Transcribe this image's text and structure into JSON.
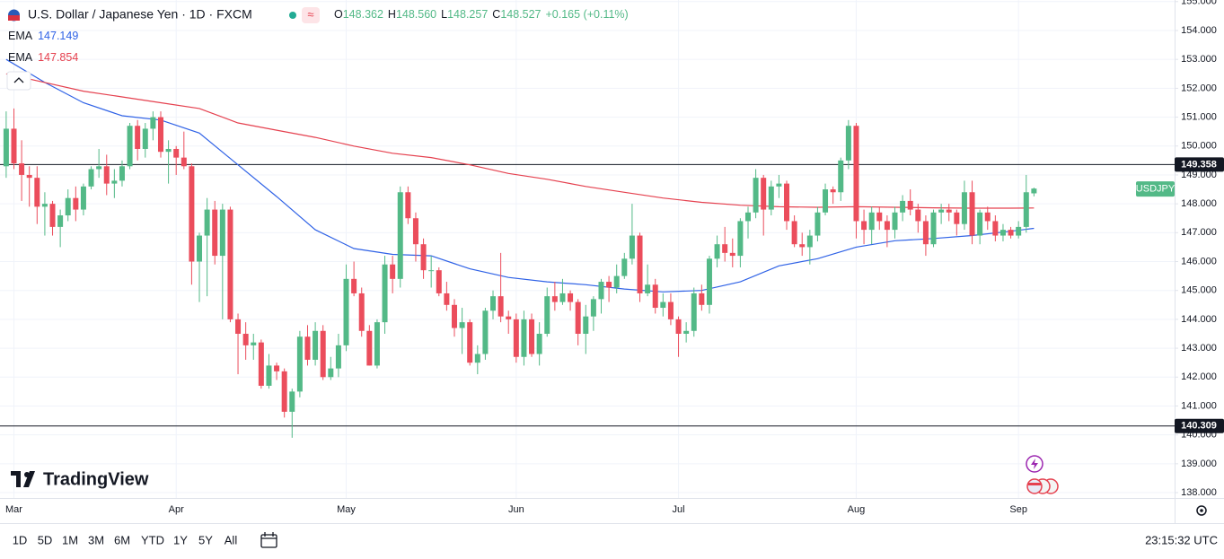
{
  "header": {
    "title": "U.S. Dollar / Japanese Yen · 1D · FXCM",
    "ohlc": [
      {
        "label": "O",
        "value": "148.362"
      },
      {
        "label": "H",
        "value": "148.560"
      },
      {
        "label": "L",
        "value": "148.257"
      },
      {
        "label": "C",
        "value": "148.527"
      }
    ],
    "change": "+0.165 (+0.11%)"
  },
  "logo": "TradingView",
  "toolbar": {
    "ranges": [
      "1D",
      "5D",
      "1M",
      "3M",
      "6M",
      "YTD",
      "1Y",
      "5Y",
      "All"
    ],
    "time": "23:15:32 UTC"
  },
  "chart_data": {
    "type": "candlestick",
    "up_color": "#53b987",
    "down_color": "#eb4d5c",
    "grid": true,
    "symbol_tag": "USDJPY",
    "candles": [
      [
        149.3,
        151.2,
        148.9,
        150.6
      ],
      [
        150.6,
        151.3,
        149.2,
        149.4
      ],
      [
        149.4,
        150.2,
        148.1,
        149.0
      ],
      [
        149.0,
        149.3,
        147.9,
        148.9
      ],
      [
        148.9,
        149.3,
        147.3,
        147.9
      ],
      [
        147.9,
        148.4,
        146.9,
        148.0
      ],
      [
        148.0,
        148.1,
        146.9,
        147.2
      ],
      [
        147.2,
        147.8,
        146.5,
        147.6
      ],
      [
        147.6,
        148.5,
        147.4,
        148.2
      ],
      [
        148.2,
        148.6,
        147.4,
        147.8
      ],
      [
        147.8,
        148.7,
        147.6,
        148.6
      ],
      [
        148.6,
        149.3,
        148.5,
        149.2
      ],
      [
        149.2,
        149.9,
        148.9,
        149.3
      ],
      [
        149.3,
        149.7,
        148.3,
        148.7
      ],
      [
        148.7,
        149.2,
        148.2,
        148.8
      ],
      [
        148.8,
        149.5,
        148.6,
        149.3
      ],
      [
        149.3,
        150.8,
        149.2,
        150.7
      ],
      [
        150.7,
        150.9,
        149.5,
        149.9
      ],
      [
        149.9,
        150.8,
        149.6,
        150.6
      ],
      [
        150.6,
        151.2,
        150.2,
        151.0
      ],
      [
        151.0,
        151.2,
        149.6,
        149.8
      ],
      [
        149.8,
        150.2,
        148.7,
        149.9
      ],
      [
        149.9,
        150.0,
        149.0,
        149.6
      ],
      [
        149.6,
        150.5,
        149.2,
        149.3
      ],
      [
        149.3,
        149.4,
        145.2,
        146.0
      ],
      [
        146.0,
        147.0,
        144.6,
        146.9
      ],
      [
        146.9,
        148.2,
        144.8,
        147.8
      ],
      [
        147.8,
        148.1,
        145.9,
        146.2
      ],
      [
        146.2,
        148.0,
        144.0,
        147.8
      ],
      [
        147.8,
        147.9,
        143.9,
        144.0
      ],
      [
        144.0,
        144.2,
        142.1,
        143.5
      ],
      [
        143.5,
        143.9,
        142.6,
        143.1
      ],
      [
        143.1,
        143.5,
        142.6,
        143.2
      ],
      [
        143.2,
        143.3,
        141.6,
        141.7
      ],
      [
        141.7,
        142.8,
        141.6,
        142.4
      ],
      [
        142.4,
        142.5,
        141.9,
        142.2
      ],
      [
        142.2,
        142.3,
        140.6,
        140.8
      ],
      [
        140.8,
        141.6,
        139.9,
        141.5
      ],
      [
        141.5,
        143.6,
        141.3,
        143.4
      ],
      [
        143.4,
        143.8,
        142.4,
        142.6
      ],
      [
        142.6,
        143.9,
        142.4,
        143.6
      ],
      [
        143.6,
        143.8,
        141.9,
        142.0
      ],
      [
        142.0,
        142.7,
        141.9,
        142.3
      ],
      [
        142.3,
        143.5,
        142.0,
        143.1
      ],
      [
        143.1,
        145.9,
        142.9,
        145.4
      ],
      [
        145.4,
        146.0,
        144.8,
        144.9
      ],
      [
        144.9,
        145.1,
        143.4,
        143.6
      ],
      [
        143.6,
        143.8,
        142.4,
        142.4
      ],
      [
        142.4,
        144.0,
        142.3,
        143.9
      ],
      [
        143.9,
        146.2,
        143.5,
        145.9
      ],
      [
        145.9,
        146.2,
        144.9,
        145.4
      ],
      [
        145.4,
        148.6,
        145.1,
        148.4
      ],
      [
        148.4,
        148.6,
        147.3,
        147.5
      ],
      [
        147.5,
        147.7,
        146.0,
        146.6
      ],
      [
        146.6,
        146.8,
        145.4,
        145.7
      ],
      [
        145.7,
        146.2,
        145.1,
        145.7
      ],
      [
        145.7,
        145.8,
        144.8,
        144.9
      ],
      [
        144.9,
        145.3,
        144.3,
        144.5
      ],
      [
        144.5,
        144.7,
        143.4,
        143.7
      ],
      [
        143.7,
        144.4,
        142.8,
        143.9
      ],
      [
        143.9,
        144.0,
        142.4,
        142.5
      ],
      [
        142.5,
        143.1,
        142.1,
        142.8
      ],
      [
        142.8,
        144.4,
        142.6,
        144.3
      ],
      [
        144.3,
        145.0,
        144.0,
        144.8
      ],
      [
        144.8,
        146.3,
        143.9,
        144.1
      ],
      [
        144.1,
        144.3,
        143.5,
        144.0
      ],
      [
        144.0,
        144.2,
        142.5,
        142.7
      ],
      [
        142.7,
        144.3,
        142.4,
        144.0
      ],
      [
        144.0,
        144.2,
        142.7,
        142.8
      ],
      [
        142.8,
        143.9,
        142.4,
        143.5
      ],
      [
        143.5,
        145.1,
        143.4,
        144.8
      ],
      [
        144.8,
        145.3,
        144.3,
        144.6
      ],
      [
        144.6,
        145.4,
        144.5,
        144.9
      ],
      [
        144.9,
        145.0,
        144.3,
        144.6
      ],
      [
        144.6,
        144.7,
        143.1,
        143.5
      ],
      [
        143.5,
        144.5,
        142.8,
        144.1
      ],
      [
        144.1,
        144.8,
        143.6,
        144.7
      ],
      [
        144.7,
        145.4,
        144.2,
        145.3
      ],
      [
        145.3,
        145.5,
        144.6,
        145.1
      ],
      [
        145.1,
        145.9,
        144.9,
        145.5
      ],
      [
        145.5,
        146.3,
        145.4,
        146.1
      ],
      [
        146.1,
        148.0,
        145.9,
        146.9
      ],
      [
        146.9,
        147.0,
        144.6,
        144.9
      ],
      [
        144.9,
        145.9,
        144.8,
        145.2
      ],
      [
        145.2,
        145.4,
        144.2,
        144.4
      ],
      [
        144.4,
        144.9,
        144.1,
        144.6
      ],
      [
        144.6,
        144.9,
        143.8,
        144.0
      ],
      [
        144.0,
        144.1,
        142.7,
        143.5
      ],
      [
        143.5,
        143.9,
        143.2,
        143.6
      ],
      [
        143.6,
        145.1,
        143.4,
        144.9
      ],
      [
        144.9,
        145.2,
        144.3,
        144.5
      ],
      [
        144.5,
        146.2,
        144.2,
        146.1
      ],
      [
        146.1,
        146.9,
        145.8,
        146.6
      ],
      [
        146.6,
        147.2,
        146.0,
        146.3
      ],
      [
        146.3,
        146.8,
        145.8,
        146.2
      ],
      [
        146.2,
        147.5,
        145.8,
        147.4
      ],
      [
        147.4,
        147.9,
        146.8,
        147.7
      ],
      [
        147.7,
        149.2,
        147.5,
        148.9
      ],
      [
        148.9,
        149.0,
        146.9,
        147.8
      ],
      [
        147.8,
        148.8,
        147.6,
        148.6
      ],
      [
        148.6,
        149.0,
        148.2,
        148.7
      ],
      [
        148.7,
        148.8,
        147.1,
        147.4
      ],
      [
        147.4,
        147.6,
        146.5,
        146.6
      ],
      [
        146.6,
        147.0,
        146.2,
        146.5
      ],
      [
        146.5,
        147.1,
        145.9,
        146.9
      ],
      [
        146.9,
        147.9,
        146.7,
        147.7
      ],
      [
        147.7,
        148.7,
        147.6,
        148.5
      ],
      [
        148.5,
        148.6,
        148.0,
        148.4
      ],
      [
        148.4,
        149.6,
        148.1,
        149.5
      ],
      [
        149.5,
        150.9,
        149.2,
        150.7
      ],
      [
        150.7,
        150.8,
        146.8,
        147.4
      ],
      [
        147.4,
        147.8,
        146.6,
        147.1
      ],
      [
        147.1,
        147.9,
        146.6,
        147.7
      ],
      [
        147.7,
        147.9,
        147.1,
        147.4
      ],
      [
        147.4,
        147.6,
        146.5,
        147.1
      ],
      [
        147.1,
        147.9,
        146.8,
        147.7
      ],
      [
        147.7,
        148.3,
        147.4,
        148.1
      ],
      [
        148.1,
        148.5,
        147.6,
        147.8
      ],
      [
        147.8,
        148.0,
        147.0,
        147.4
      ],
      [
        147.4,
        147.6,
        146.2,
        146.6
      ],
      [
        146.6,
        147.8,
        146.5,
        147.7
      ],
      [
        147.7,
        148.0,
        147.3,
        147.8
      ],
      [
        147.8,
        148.0,
        147.4,
        147.7
      ],
      [
        147.7,
        147.8,
        146.9,
        147.3
      ],
      [
        147.3,
        148.8,
        147.1,
        148.4
      ],
      [
        148.4,
        148.8,
        146.6,
        146.9
      ],
      [
        146.9,
        147.8,
        146.6,
        147.7
      ],
      [
        147.7,
        147.9,
        147.1,
        147.4
      ],
      [
        147.4,
        147.6,
        146.7,
        146.9
      ],
      [
        146.9,
        147.3,
        146.7,
        147.1
      ],
      [
        147.1,
        147.2,
        146.8,
        146.9
      ],
      [
        146.9,
        147.4,
        146.8,
        147.2
      ],
      [
        147.2,
        149.0,
        147.0,
        148.4
      ],
      [
        148.362,
        148.56,
        148.257,
        148.527
      ]
    ],
    "series": [
      {
        "name": "EMA",
        "color": "#2f62e6",
        "x": [
          0,
          5,
          10,
          15,
          20,
          25,
          30,
          35,
          40,
          45,
          50,
          55,
          60,
          65,
          70,
          75,
          80,
          85,
          90,
          95,
          100,
          105,
          110,
          115,
          120,
          125,
          130,
          133
        ],
        "values": [
          153.0,
          152.2,
          151.5,
          151.05,
          150.9,
          150.45,
          149.35,
          148.25,
          147.1,
          146.45,
          146.25,
          146.2,
          145.75,
          145.45,
          145.3,
          145.2,
          145.05,
          144.95,
          145.0,
          145.3,
          145.85,
          146.1,
          146.5,
          146.72,
          146.8,
          146.9,
          147.05,
          147.149
        ]
      },
      {
        "name": "EMA",
        "color": "#e5414f",
        "x": [
          0,
          5,
          10,
          15,
          20,
          25,
          30,
          35,
          40,
          45,
          50,
          55,
          60,
          65,
          70,
          75,
          80,
          85,
          90,
          95,
          100,
          105,
          110,
          115,
          120,
          125,
          130,
          133
        ],
        "values": [
          152.5,
          152.2,
          151.9,
          151.7,
          151.5,
          151.3,
          150.8,
          150.55,
          150.3,
          150.0,
          149.75,
          149.6,
          149.35,
          149.05,
          148.85,
          148.6,
          148.4,
          148.2,
          148.05,
          147.95,
          147.9,
          147.88,
          147.9,
          147.88,
          147.86,
          147.85,
          147.85,
          147.854
        ]
      }
    ],
    "hlines": [
      {
        "value": 149.358,
        "color": "#131722"
      },
      {
        "value": 140.309,
        "color": "#131722"
      }
    ],
    "xlim": [
      -0.8,
      151.2
    ],
    "xticks": [
      {
        "value": 1,
        "label": "Mar"
      },
      {
        "value": 22,
        "label": "Apr"
      },
      {
        "value": 44,
        "label": "May"
      },
      {
        "value": 66,
        "label": "Jun"
      },
      {
        "value": 87,
        "label": "Jul"
      },
      {
        "value": 110,
        "label": "Aug"
      },
      {
        "value": 131,
        "label": "Sep"
      }
    ],
    "ylim": [
      137.815,
      155.056
    ],
    "yticks": [
      {
        "value": 138,
        "label": "138.000"
      },
      {
        "value": 139,
        "label": "139.000"
      },
      {
        "value": 140,
        "label": "140.000"
      },
      {
        "value": 141,
        "label": "141.000"
      },
      {
        "value": 142,
        "label": "142.000"
      },
      {
        "value": 143,
        "label": "143.000"
      },
      {
        "value": 144,
        "label": "144.000"
      },
      {
        "value": 145,
        "label": "145.000"
      },
      {
        "value": 146,
        "label": "146.000"
      },
      {
        "value": 147,
        "label": "147.000"
      },
      {
        "value": 148,
        "label": "148.000"
      },
      {
        "value": 149,
        "label": "149.000"
      },
      {
        "value": 150,
        "label": "150.000"
      },
      {
        "value": 151,
        "label": "151.000"
      },
      {
        "value": 152,
        "label": "152.000"
      },
      {
        "value": 153,
        "label": "153.000"
      },
      {
        "value": 154,
        "label": "154.000"
      },
      {
        "value": 155,
        "label": "155.000"
      }
    ]
  }
}
